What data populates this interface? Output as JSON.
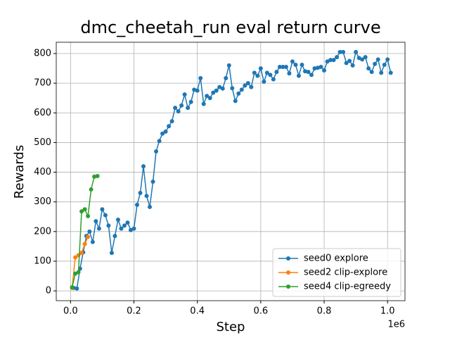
{
  "chart_data": {
    "type": "line",
    "title": "dmc_cheetah_run eval return curve",
    "x_label": "Step",
    "y_label": "Rewards",
    "x_offset_label": "1e6",
    "xlim": [
      -0.045,
      1.055
    ],
    "ylim": [
      -33,
      838
    ],
    "xticks": [
      {
        "value": 0,
        "label": "0.0"
      },
      0.2,
      0.4,
      0.6,
      0.8,
      {
        "value": 1,
        "label": "1.0"
      }
    ],
    "yticks": [
      0,
      100,
      200,
      300,
      400,
      500,
      600,
      700,
      800
    ],
    "grid": true,
    "legend": "lower right",
    "series": [
      {
        "name": "seed0 explore",
        "color": "#1f77b4",
        "x": [
          0.01,
          0.02,
          0.03,
          0.04,
          0.05,
          0.06,
          0.07,
          0.08,
          0.09,
          0.1,
          0.11,
          0.12,
          0.13,
          0.14,
          0.15,
          0.16,
          0.17,
          0.18,
          0.19,
          0.2,
          0.21,
          0.22,
          0.23,
          0.24,
          0.25,
          0.26,
          0.27,
          0.28,
          0.29,
          0.3,
          0.31,
          0.32,
          0.33,
          0.34,
          0.35,
          0.36,
          0.37,
          0.38,
          0.39,
          0.4,
          0.41,
          0.42,
          0.43,
          0.44,
          0.45,
          0.46,
          0.47,
          0.48,
          0.49,
          0.5,
          0.51,
          0.52,
          0.53,
          0.54,
          0.55,
          0.56,
          0.57,
          0.58,
          0.59,
          0.6,
          0.61,
          0.62,
          0.63,
          0.64,
          0.65,
          0.66,
          0.67,
          0.68,
          0.69,
          0.7,
          0.71,
          0.72,
          0.73,
          0.74,
          0.75,
          0.76,
          0.77,
          0.78,
          0.79,
          0.8,
          0.81,
          0.82,
          0.83,
          0.84,
          0.85,
          0.86,
          0.87,
          0.88,
          0.89,
          0.9,
          0.91,
          0.92,
          0.93,
          0.94,
          0.95,
          0.96,
          0.97,
          0.98,
          0.99,
          1.0,
          1.01
        ],
        "values": [
          10,
          8,
          75,
          130,
          185,
          200,
          165,
          235,
          210,
          275,
          255,
          220,
          128,
          185,
          240,
          210,
          220,
          230,
          205,
          210,
          290,
          330,
          420,
          320,
          283,
          368,
          470,
          505,
          530,
          537,
          555,
          572,
          617,
          605,
          625,
          662,
          617,
          637,
          678,
          675,
          717,
          630,
          657,
          650,
          668,
          675,
          687,
          682,
          717,
          760,
          683,
          640,
          665,
          678,
          692,
          700,
          687,
          735,
          725,
          750,
          705,
          735,
          728,
          713,
          738,
          755,
          755,
          755,
          733,
          773,
          762,
          725,
          762,
          740,
          738,
          728,
          750,
          752,
          755,
          743,
          773,
          778,
          778,
          788,
          805,
          805,
          768,
          775,
          760,
          805,
          785,
          780,
          788,
          750,
          738,
          765,
          780,
          735,
          762,
          780,
          735
        ]
      },
      {
        "name": "seed2 clip-explore",
        "color": "#ff7f0e",
        "x": [
          0.005,
          0.015,
          0.025,
          0.035,
          0.045,
          0.055
        ],
        "values": [
          10,
          113,
          120,
          128,
          158,
          182
        ]
      },
      {
        "name": "seed4 clip-egreedy",
        "color": "#2ca02c",
        "x": [
          0.005,
          0.015,
          0.025,
          0.035,
          0.045,
          0.055,
          0.065,
          0.075,
          0.085
        ],
        "values": [
          12,
          58,
          63,
          268,
          275,
          252,
          342,
          385,
          387
        ]
      }
    ]
  }
}
